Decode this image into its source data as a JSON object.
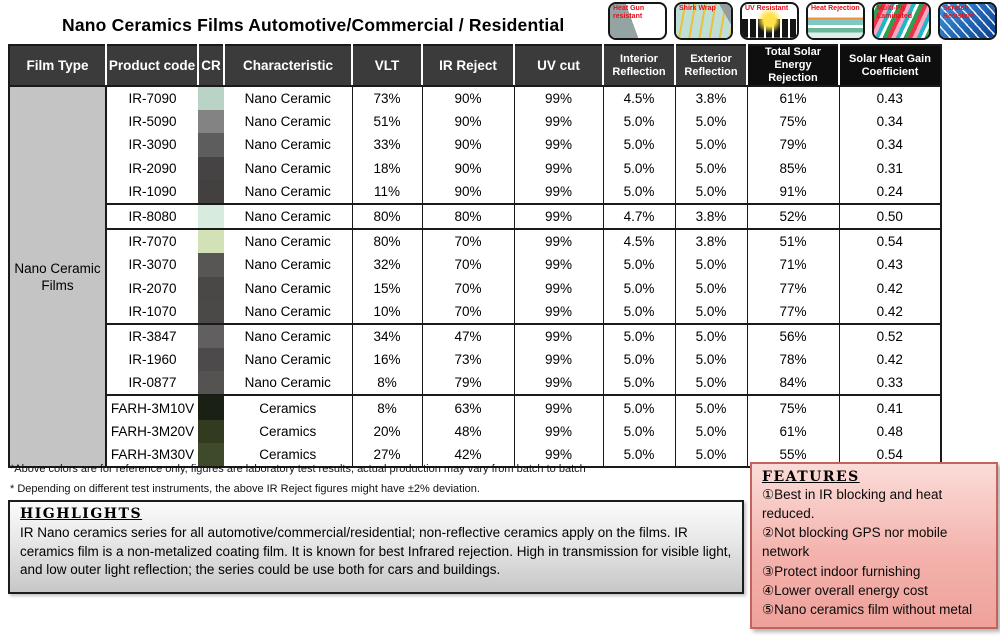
{
  "title": "Nano Ceramics Films Automotive/Commercial / Residential",
  "badges": [
    {
      "id": "heat-gun-resistant",
      "label": "Heat Gun resistant"
    },
    {
      "id": "shirk-wrap",
      "label": "Shirk Wrap"
    },
    {
      "id": "uv-resistant",
      "label": "UV Resistant"
    },
    {
      "id": "heat-rejection",
      "label": "Heat Rejection"
    },
    {
      "id": "multi-ply-laminated",
      "label": "Multi-Ply Laminated"
    },
    {
      "id": "scratch-resistant",
      "label": "Scratch Resistant"
    }
  ],
  "table": {
    "film_type": "Nano Ceramic Films",
    "headers": [
      {
        "lines": [
          "Film Type"
        ],
        "style": "dark"
      },
      {
        "lines": [
          "Product code"
        ],
        "style": "dark"
      },
      {
        "lines": [
          "CR"
        ],
        "style": "dark"
      },
      {
        "lines": [
          "Characteristic"
        ],
        "style": "dark"
      },
      {
        "lines": [
          "VLT"
        ],
        "style": "dark"
      },
      {
        "lines": [
          "IR Reject"
        ],
        "style": "dark"
      },
      {
        "lines": [
          "UV cut"
        ],
        "style": "dark"
      },
      {
        "lines": [
          "Interior",
          "Reflection"
        ],
        "style": "dark"
      },
      {
        "lines": [
          "Exterior",
          "Reflection"
        ],
        "style": "dark"
      },
      {
        "lines": [
          "Total Solar Energy",
          "Rejection"
        ],
        "style": "black"
      },
      {
        "lines": [
          "Solar Heat Gain",
          "Coefficient"
        ],
        "style": "black"
      }
    ],
    "rows": [
      {
        "code": "IR-7090",
        "cr": "#b9d4c6",
        "char": "Nano Ceramic",
        "vlt": "73%",
        "ir": "90%",
        "uv": "99%",
        "intref": "4.5%",
        "extref": "3.8%",
        "tser": "61%",
        "shgc": "0.43",
        "group_end": false
      },
      {
        "code": "IR-5090",
        "cr": "#838383",
        "char": "Nano Ceramic",
        "vlt": "51%",
        "ir": "90%",
        "uv": "99%",
        "intref": "5.0%",
        "extref": "5.0%",
        "tser": "75%",
        "shgc": "0.34",
        "group_end": false
      },
      {
        "code": "IR-3090",
        "cr": "#5d5d5d",
        "char": "Nano Ceramic",
        "vlt": "33%",
        "ir": "90%",
        "uv": "99%",
        "intref": "5.0%",
        "extref": "5.0%",
        "tser": "79%",
        "shgc": "0.34",
        "group_end": false
      },
      {
        "code": "IR-2090",
        "cr": "#454343",
        "char": "Nano Ceramic",
        "vlt": "18%",
        "ir": "90%",
        "uv": "99%",
        "intref": "5.0%",
        "extref": "5.0%",
        "tser": "85%",
        "shgc": "0.31",
        "group_end": false
      },
      {
        "code": "IR-1090",
        "cr": "#434040",
        "char": "Nano Ceramic",
        "vlt": "11%",
        "ir": "90%",
        "uv": "99%",
        "intref": "5.0%",
        "extref": "5.0%",
        "tser": "91%",
        "shgc": "0.24",
        "group_end": true
      },
      {
        "code": "IR-8080",
        "cr": "#d8ebdf",
        "char": "Nano Ceramic",
        "vlt": "80%",
        "ir": "80%",
        "uv": "99%",
        "intref": "4.7%",
        "extref": "3.8%",
        "tser": "52%",
        "shgc": "0.50",
        "group_end": true
      },
      {
        "code": "IR-7070",
        "cr": "#d3e2b6",
        "char": "Nano Ceramic",
        "vlt": "80%",
        "ir": "70%",
        "uv": "99%",
        "intref": "4.5%",
        "extref": "3.8%",
        "tser": "51%",
        "shgc": "0.54",
        "group_end": false
      },
      {
        "code": "IR-3070",
        "cr": "#585555",
        "char": "Nano Ceramic",
        "vlt": "32%",
        "ir": "70%",
        "uv": "99%",
        "intref": "5.0%",
        "extref": "5.0%",
        "tser": "71%",
        "shgc": "0.43",
        "group_end": false
      },
      {
        "code": "IR-2070",
        "cr": "#4a4747",
        "char": "Nano Ceramic",
        "vlt": "15%",
        "ir": "70%",
        "uv": "99%",
        "intref": "5.0%",
        "extref": "5.0%",
        "tser": "77%",
        "shgc": "0.42",
        "group_end": false
      },
      {
        "code": "IR-1070",
        "cr": "#4b4848",
        "char": "Nano Ceramic",
        "vlt": "10%",
        "ir": "70%",
        "uv": "99%",
        "intref": "5.0%",
        "extref": "5.0%",
        "tser": "77%",
        "shgc": "0.42",
        "group_end": true
      },
      {
        "code": "IR-3847",
        "cr": "#615f5f",
        "char": "Nano Ceramic",
        "vlt": "34%",
        "ir": "47%",
        "uv": "99%",
        "intref": "5.0%",
        "extref": "5.0%",
        "tser": "56%",
        "shgc": "0.52",
        "group_end": false
      },
      {
        "code": "IR-1960",
        "cr": "#4c4a4a",
        "char": "Nano Ceramic",
        "vlt": "16%",
        "ir": "73%",
        "uv": "99%",
        "intref": "5.0%",
        "extref": "5.0%",
        "tser": "78%",
        "shgc": "0.42",
        "group_end": false
      },
      {
        "code": "IR-0877",
        "cr": "#555252",
        "char": "Nano Ceramic",
        "vlt": "8%",
        "ir": "79%",
        "uv": "99%",
        "intref": "5.0%",
        "extref": "5.0%",
        "tser": "84%",
        "shgc": "0.33",
        "group_end": true
      },
      {
        "code": "FARH-3M10V",
        "cr": "#1b2014",
        "char": "Ceramics",
        "vlt": "8%",
        "ir": "63%",
        "uv": "99%",
        "intref": "5.0%",
        "extref": "5.0%",
        "tser": "75%",
        "shgc": "0.41",
        "group_end": false
      },
      {
        "code": "FARH-3M20V",
        "cr": "#323b20",
        "char": "Ceramics",
        "vlt": "20%",
        "ir": "48%",
        "uv": "99%",
        "intref": "5.0%",
        "extref": "5.0%",
        "tser": "61%",
        "shgc": "0.48",
        "group_end": false
      },
      {
        "code": "FARH-3M30V",
        "cr": "#3e4a29",
        "char": "Ceramics",
        "vlt": "27%",
        "ir": "42%",
        "uv": "99%",
        "intref": "5.0%",
        "extref": "5.0%",
        "tser": "55%",
        "shgc": "0.54",
        "group_end": false
      }
    ]
  },
  "footnotes": [
    "*Above colors are for reference only, figures are laboratory test results, actual production may vary from batch to batch",
    "* Depending on different test instruments, the above IR Reject figures might have ±2% deviation."
  ],
  "highlights": {
    "title": "HIGHLIGHTS",
    "text": "IR Nano ceramics series for all automotive/commercial/residential; non-reflective ceramics apply on the films. IR ceramics film is a non-metalized coating film. It is known for best Infrared rejection. High in transmission for visible light, and low outer light reflection; the series could be use both for cars and buildings."
  },
  "features": {
    "title": "FEATURES",
    "items": [
      {
        "num": "①",
        "text": "Best in IR blocking and heat reduced."
      },
      {
        "num": "②",
        "text": "Not blocking GPS nor mobile network"
      },
      {
        "num": "③",
        "text": "Protect indoor furnishing"
      },
      {
        "num": "④",
        "text": "Lower overall energy cost"
      },
      {
        "num": "⑤",
        "text": "Nano ceramics film without metal"
      }
    ]
  },
  "colors": {
    "header_dark": "#3b3b3b",
    "header_black": "#0e0e0e",
    "film_type_bg": "#c4c4c4",
    "badge_text": "#e3111b",
    "features_border": "#c4625c",
    "features_bg": "#f4b3ad",
    "highlights_bg": "#d9d9d9"
  }
}
